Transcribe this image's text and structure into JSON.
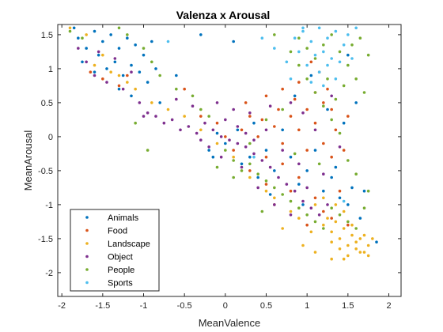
{
  "chart_data": {
    "type": "scatter",
    "title": "Valenza x Arousal",
    "xlabel": "MeanValence",
    "ylabel": "MeanArousal",
    "xlim": [
      -2.05,
      2.15
    ],
    "ylim": [
      -2.35,
      1.65
    ],
    "xticks": [
      "-2",
      "-1.5",
      "-1",
      "-0.5",
      "0",
      "0.5",
      "1",
      "1.5",
      "2"
    ],
    "yticks": [
      "1.5",
      "1",
      "0.5",
      "0",
      "-0.5",
      "-1",
      "-1.5",
      "-2"
    ],
    "legend_position": "bottom-left",
    "grid": false,
    "series": [
      {
        "name": "Animals",
        "color": "#0072bd",
        "points": [
          [
            -1.8,
            1.45
          ],
          [
            -1.7,
            1.3
          ],
          [
            -1.6,
            1.55
          ],
          [
            -1.55,
            1.2
          ],
          [
            -1.5,
            1.4
          ],
          [
            -1.45,
            1.0
          ],
          [
            -1.4,
            1.5
          ],
          [
            -1.35,
            1.1
          ],
          [
            -1.3,
            1.3
          ],
          [
            -1.25,
            0.9
          ],
          [
            -1.2,
            1.45
          ],
          [
            -1.15,
            1.05
          ],
          [
            -1.1,
            1.35
          ],
          [
            -1.05,
            0.95
          ],
          [
            -1.0,
            1.2
          ],
          [
            -0.95,
            0.8
          ],
          [
            -1.3,
            0.7
          ],
          [
            -1.6,
            0.95
          ],
          [
            -1.75,
            1.1
          ],
          [
            -0.85,
            1.0
          ],
          [
            -0.9,
            1.4
          ],
          [
            -1.15,
            0.6
          ],
          [
            -0.3,
            1.5
          ],
          [
            0.1,
            1.4
          ],
          [
            -0.1,
            0.05
          ],
          [
            0.0,
            -0.1
          ],
          [
            0.15,
            0.1
          ],
          [
            0.3,
            -0.3
          ],
          [
            0.5,
            -0.2
          ],
          [
            0.6,
            -0.5
          ],
          [
            0.8,
            -0.3
          ],
          [
            0.9,
            -0.7
          ],
          [
            1.0,
            -0.5
          ],
          [
            1.2,
            -0.8
          ],
          [
            1.3,
            -0.6
          ],
          [
            1.4,
            -0.9
          ],
          [
            1.5,
            -1.0
          ],
          [
            1.35,
            -0.45
          ],
          [
            1.55,
            -0.75
          ],
          [
            1.65,
            -1.2
          ],
          [
            1.1,
            -0.2
          ],
          [
            0.7,
            0.1
          ],
          [
            0.4,
            -0.6
          ],
          [
            0.2,
            -0.4
          ],
          [
            1.85,
            -1.55
          ],
          [
            1.7,
            -0.8
          ],
          [
            1.25,
            0.4
          ],
          [
            1.45,
            0.2
          ],
          [
            1.6,
            0.5
          ],
          [
            0.95,
            -1.0
          ],
          [
            0.55,
            -0.85
          ],
          [
            -0.15,
            -0.3
          ],
          [
            -0.8,
            0.5
          ],
          [
            -0.6,
            0.9
          ],
          [
            -1.85,
            1.6
          ],
          [
            0.35,
            0.2
          ],
          [
            0.85,
            0.6
          ],
          [
            1.05,
            0.9
          ],
          [
            1.5,
            1.2
          ],
          [
            -0.2,
            -0.2
          ]
        ]
      },
      {
        "name": "Food",
        "color": "#d95319",
        "points": [
          [
            -1.65,
            0.95
          ],
          [
            -1.5,
            0.85
          ],
          [
            -1.3,
            0.75
          ],
          [
            -1.2,
            0.9
          ],
          [
            0.5,
            0.6
          ],
          [
            0.7,
            0.7
          ],
          [
            0.9,
            0.8
          ],
          [
            1.1,
            0.65
          ],
          [
            1.2,
            0.5
          ],
          [
            1.3,
            0.4
          ],
          [
            1.0,
            0.4
          ],
          [
            0.8,
            0.3
          ],
          [
            0.6,
            0.15
          ],
          [
            0.9,
            0.1
          ],
          [
            1.1,
            0.2
          ],
          [
            1.2,
            -0.1
          ],
          [
            1.3,
            -0.3
          ],
          [
            1.0,
            -0.2
          ],
          [
            0.7,
            -0.1
          ],
          [
            0.5,
            -0.3
          ],
          [
            0.4,
            0.0
          ],
          [
            0.3,
            0.3
          ],
          [
            0.2,
            0.1
          ],
          [
            0.0,
            0.0
          ],
          [
            -0.1,
            0.2
          ],
          [
            0.1,
            -0.2
          ],
          [
            0.3,
            -0.5
          ],
          [
            0.5,
            -0.7
          ],
          [
            0.7,
            -0.4
          ],
          [
            0.9,
            -0.6
          ],
          [
            1.1,
            -0.9
          ],
          [
            1.3,
            -1.2
          ],
          [
            1.5,
            -1.3
          ],
          [
            1.4,
            -0.8
          ],
          [
            1.2,
            -1.1
          ],
          [
            0.8,
            -0.8
          ],
          [
            1.0,
            -1.3
          ],
          [
            0.6,
            -1.0
          ],
          [
            1.15,
            0.95
          ],
          [
            1.25,
            0.7
          ],
          [
            1.35,
            0.1
          ],
          [
            1.45,
            -0.2
          ],
          [
            1.05,
            1.1
          ],
          [
            0.85,
            0.55
          ],
          [
            0.65,
            0.4
          ],
          [
            0.45,
            0.25
          ],
          [
            1.5,
            0.3
          ],
          [
            -0.5,
            0.7
          ],
          [
            -0.3,
            0.3
          ],
          [
            0.25,
            0.5
          ]
        ]
      },
      {
        "name": "Landscape",
        "color": "#edb120",
        "points": [
          [
            1.2,
            -1.3
          ],
          [
            1.3,
            -1.4
          ],
          [
            1.4,
            -1.5
          ],
          [
            1.5,
            -1.6
          ],
          [
            1.6,
            -1.65
          ],
          [
            1.7,
            -1.7
          ],
          [
            1.75,
            -1.6
          ],
          [
            1.65,
            -1.5
          ],
          [
            1.55,
            -1.45
          ],
          [
            1.45,
            -1.35
          ],
          [
            1.35,
            -1.25
          ],
          [
            1.25,
            -1.2
          ],
          [
            1.5,
            -1.75
          ],
          [
            1.6,
            -1.55
          ],
          [
            1.7,
            -1.45
          ],
          [
            1.4,
            -1.65
          ],
          [
            1.3,
            -1.55
          ],
          [
            1.8,
            -1.5
          ],
          [
            1.55,
            -1.3
          ],
          [
            1.45,
            -1.8
          ],
          [
            1.65,
            -1.7
          ],
          [
            1.75,
            -1.75
          ],
          [
            1.35,
            -1.0
          ],
          [
            1.2,
            -0.9
          ],
          [
            1.1,
            -1.0
          ],
          [
            0.9,
            -1.2
          ],
          [
            0.95,
            -1.6
          ],
          [
            1.05,
            -1.4
          ],
          [
            0.8,
            -1.1
          ],
          [
            0.6,
            -0.9
          ],
          [
            0.5,
            -0.8
          ],
          [
            0.3,
            -0.6
          ],
          [
            0.1,
            -0.3
          ],
          [
            -0.1,
            -0.1
          ],
          [
            -0.3,
            0.1
          ],
          [
            -0.5,
            0.3
          ],
          [
            -0.7,
            0.4
          ],
          [
            -0.9,
            0.5
          ],
          [
            -1.1,
            0.7
          ],
          [
            -1.3,
            0.9
          ],
          [
            -1.5,
            1.2
          ],
          [
            -1.7,
            1.5
          ],
          [
            -1.9,
            1.6
          ],
          [
            -1.6,
            1.05
          ],
          [
            -1.4,
            0.95
          ],
          [
            -1.2,
            0.8
          ],
          [
            1.1,
            -1.7
          ],
          [
            1.3,
            -1.8
          ],
          [
            0.7,
            -1.35
          ],
          [
            1.45,
            -1.1
          ]
        ]
      },
      {
        "name": "Object",
        "color": "#7e2f8e",
        "points": [
          [
            -1.8,
            1.3
          ],
          [
            -1.7,
            1.1
          ],
          [
            -1.6,
            0.9
          ],
          [
            -1.55,
            1.25
          ],
          [
            -1.45,
            0.8
          ],
          [
            -1.35,
            1.15
          ],
          [
            -1.25,
            0.7
          ],
          [
            -1.15,
            0.95
          ],
          [
            -1.05,
            0.5
          ],
          [
            -0.95,
            0.35
          ],
          [
            -0.85,
            0.3
          ],
          [
            -0.75,
            0.2
          ],
          [
            -0.65,
            0.25
          ],
          [
            -0.55,
            0.1
          ],
          [
            -0.45,
            0.15
          ],
          [
            -0.35,
            0.05
          ],
          [
            -0.25,
            0.2
          ],
          [
            -0.15,
            0.1
          ],
          [
            -0.05,
            0.0
          ],
          [
            0.05,
            -0.05
          ],
          [
            0.15,
            -0.1
          ],
          [
            0.25,
            -0.15
          ],
          [
            0.35,
            -0.25
          ],
          [
            0.45,
            -0.35
          ],
          [
            0.55,
            -0.45
          ],
          [
            0.65,
            -0.6
          ],
          [
            0.75,
            -0.7
          ],
          [
            0.85,
            -0.8
          ],
          [
            0.95,
            -0.95
          ],
          [
            1.05,
            -1.05
          ],
          [
            1.15,
            -1.15
          ],
          [
            1.25,
            -1.0
          ],
          [
            0.9,
            -0.4
          ],
          [
            0.7,
            -0.2
          ],
          [
            0.5,
            0.1
          ],
          [
            0.3,
            0.35
          ],
          [
            0.1,
            0.4
          ],
          [
            -0.1,
            0.5
          ],
          [
            0.0,
            0.25
          ],
          [
            -0.2,
            -0.15
          ],
          [
            0.2,
            -0.45
          ],
          [
            0.4,
            -0.75
          ],
          [
            0.6,
            -1.0
          ],
          [
            0.8,
            -1.15
          ],
          [
            1.0,
            -0.75
          ],
          [
            1.2,
            -0.55
          ],
          [
            1.1,
            0.1
          ],
          [
            0.95,
            0.35
          ],
          [
            0.8,
            0.5
          ],
          [
            1.3,
            0.6
          ],
          [
            -0.4,
            0.45
          ],
          [
            -0.6,
            0.55
          ],
          [
            -1.0,
            0.3
          ],
          [
            0.15,
            0.15
          ],
          [
            -0.05,
            -0.3
          ],
          [
            0.35,
            -0.05
          ],
          [
            1.4,
            -0.15
          ],
          [
            0.55,
            0.45
          ],
          [
            -0.3,
            -0.05
          ],
          [
            0.25,
            0.05
          ]
        ]
      },
      {
        "name": "People",
        "color": "#77ac30",
        "points": [
          [
            -1.9,
            1.55
          ],
          [
            -1.75,
            1.45
          ],
          [
            -1.3,
            1.6
          ],
          [
            -1.0,
            1.3
          ],
          [
            -0.9,
            1.1
          ],
          [
            -0.8,
            0.9
          ],
          [
            -0.6,
            0.7
          ],
          [
            -0.4,
            0.6
          ],
          [
            -0.3,
            0.4
          ],
          [
            -0.2,
            0.3
          ],
          [
            0.0,
            -0.2
          ],
          [
            0.1,
            -0.35
          ],
          [
            0.2,
            -0.5
          ],
          [
            0.3,
            -0.4
          ],
          [
            0.4,
            -0.55
          ],
          [
            0.5,
            -0.65
          ],
          [
            0.6,
            -0.75
          ],
          [
            0.7,
            -0.85
          ],
          [
            0.8,
            -0.95
          ],
          [
            0.9,
            -1.05
          ],
          [
            1.0,
            -1.15
          ],
          [
            1.1,
            -1.25
          ],
          [
            1.2,
            -1.35
          ],
          [
            1.3,
            -1.05
          ],
          [
            1.4,
            -1.15
          ],
          [
            1.5,
            -1.25
          ],
          [
            1.6,
            -1.35
          ],
          [
            1.7,
            -1.05
          ],
          [
            1.75,
            -0.8
          ],
          [
            1.6,
            -0.55
          ],
          [
            1.5,
            -0.35
          ],
          [
            1.4,
            0.05
          ],
          [
            1.3,
            0.25
          ],
          [
            1.2,
            0.45
          ],
          [
            1.1,
            0.65
          ],
          [
            1.0,
            0.85
          ],
          [
            0.9,
            1.05
          ],
          [
            0.8,
            1.25
          ],
          [
            0.9,
            1.45
          ],
          [
            1.0,
            1.3
          ],
          [
            1.1,
            1.15
          ],
          [
            1.2,
            1.35
          ],
          [
            1.3,
            1.5
          ],
          [
            1.4,
            1.25
          ],
          [
            1.5,
            1.05
          ],
          [
            1.6,
            0.85
          ],
          [
            1.7,
            0.65
          ],
          [
            1.65,
            1.45
          ],
          [
            1.55,
            1.35
          ],
          [
            1.45,
            0.75
          ],
          [
            1.35,
            0.55
          ],
          [
            1.25,
            0.85
          ],
          [
            0.7,
            0.4
          ],
          [
            0.5,
            0.25
          ],
          [
            0.3,
            -0.1
          ],
          [
            0.1,
            -0.6
          ],
          [
            -0.1,
            -0.45
          ],
          [
            0.45,
            -1.1
          ],
          [
            -1.1,
            0.2
          ],
          [
            -0.95,
            -0.2
          ],
          [
            -1.2,
            1.5
          ],
          [
            1.75,
            1.2
          ],
          [
            0.6,
            1.5
          ],
          [
            1.15,
            -0.4
          ],
          [
            0.85,
            -0.25
          ]
        ]
      },
      {
        "name": "Sports",
        "color": "#4dbeee",
        "points": [
          [
            0.85,
            1.45
          ],
          [
            0.95,
            1.55
          ],
          [
            1.05,
            1.4
          ],
          [
            1.15,
            1.6
          ],
          [
            1.25,
            1.45
          ],
          [
            1.35,
            1.55
          ],
          [
            1.45,
            1.35
          ],
          [
            1.2,
            1.25
          ],
          [
            1.1,
            1.2
          ],
          [
            1.3,
            1.15
          ],
          [
            1.0,
            1.05
          ],
          [
            1.4,
            1.1
          ],
          [
            0.9,
            1.25
          ],
          [
            1.15,
            0.95
          ],
          [
            1.25,
            1.05
          ],
          [
            1.5,
            1.5
          ],
          [
            0.75,
            1.1
          ],
          [
            0.6,
            1.3
          ],
          [
            0.45,
            1.45
          ],
          [
            1.35,
            0.85
          ],
          [
            1.55,
            1.15
          ],
          [
            1.05,
            0.8
          ],
          [
            0.8,
            0.85
          ],
          [
            -0.7,
            1.4
          ],
          [
            1.45,
            -0.95
          ],
          [
            0.35,
            -0.3
          ],
          [
            1.6,
            1.6
          ],
          [
            1.2,
            0.75
          ],
          [
            0.95,
            1.6
          ]
        ]
      }
    ]
  }
}
